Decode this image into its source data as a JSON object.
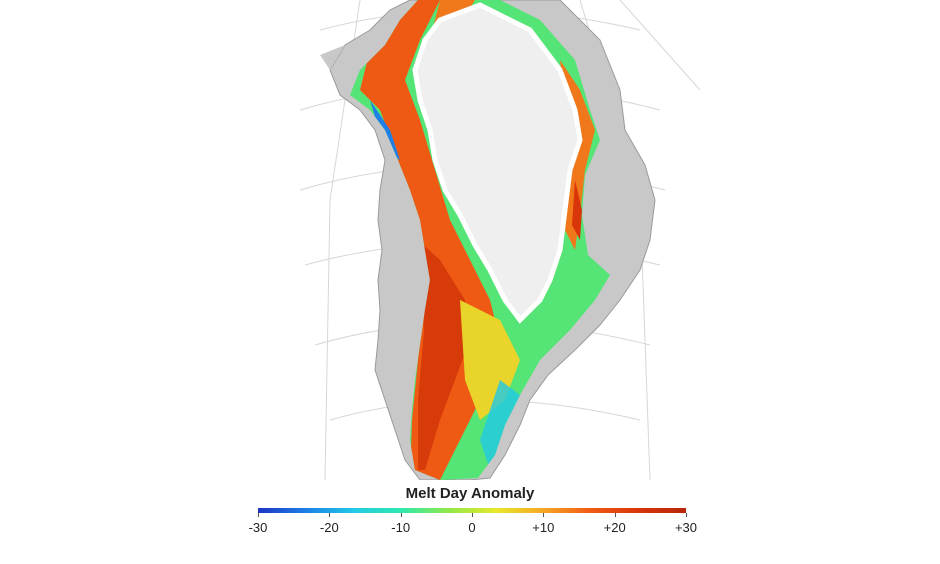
{
  "legend": {
    "title": "Melt Day Anomaly",
    "ticks": [
      "-30",
      "-20",
      "-10",
      "0",
      "+10",
      "+20",
      "+30"
    ],
    "tick_values": [
      -30,
      -20,
      -10,
      0,
      10,
      20,
      30
    ],
    "range": [
      -30,
      30
    ],
    "colormap": [
      "#1b35c4",
      "#1e7fe6",
      "#21c9e6",
      "#2ee8b0",
      "#8ee84a",
      "#e8e82a",
      "#f5a623",
      "#f05a14",
      "#d8350a",
      "#b8250a"
    ]
  },
  "map": {
    "region": "Greenland",
    "land_color": "#c8c8c8",
    "ice_sheet_color": "#efefef",
    "graticule_color": "#d6d6d6"
  }
}
